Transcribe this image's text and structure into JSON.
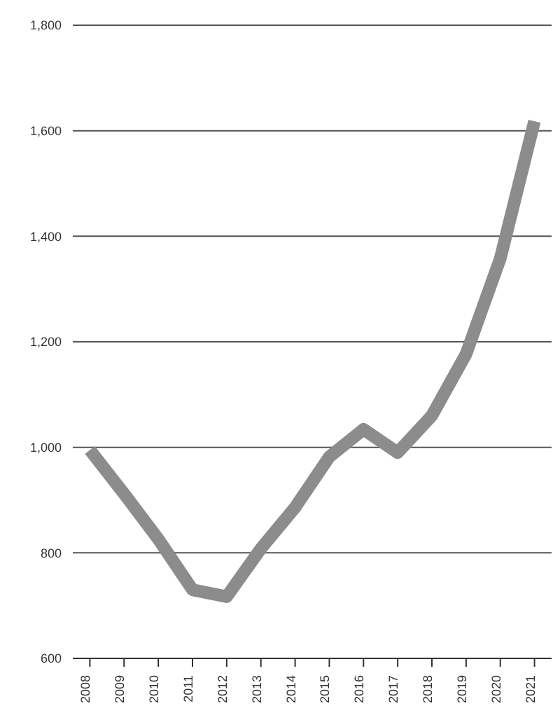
{
  "chart_data": {
    "type": "line",
    "categories": [
      "2008",
      "2009",
      "2010",
      "2011",
      "2012",
      "2013",
      "2014",
      "2015",
      "2016",
      "2017",
      "2018",
      "2019",
      "2020",
      "2021"
    ],
    "series": [
      {
        "color": "#8c8c8c",
        "values": [
          995,
          912,
          826,
          730,
          717,
          808,
          886,
          982,
          1034,
          990,
          1060,
          1177,
          1358,
          1618
        ]
      }
    ],
    "ylim": [
      600,
      1800
    ],
    "yticks": [
      {
        "value": 600,
        "label": "600"
      },
      {
        "value": 800,
        "label": "800"
      },
      {
        "value": 1000,
        "label": "1,000"
      },
      {
        "value": 1200,
        "label": "1,200"
      },
      {
        "value": 1400,
        "label": "1,400"
      },
      {
        "value": 1600,
        "label": "1,600"
      },
      {
        "value": 1800,
        "label": "1,800"
      }
    ],
    "grid": "y",
    "legend": false,
    "marker": "none",
    "line_style": "solid"
  }
}
